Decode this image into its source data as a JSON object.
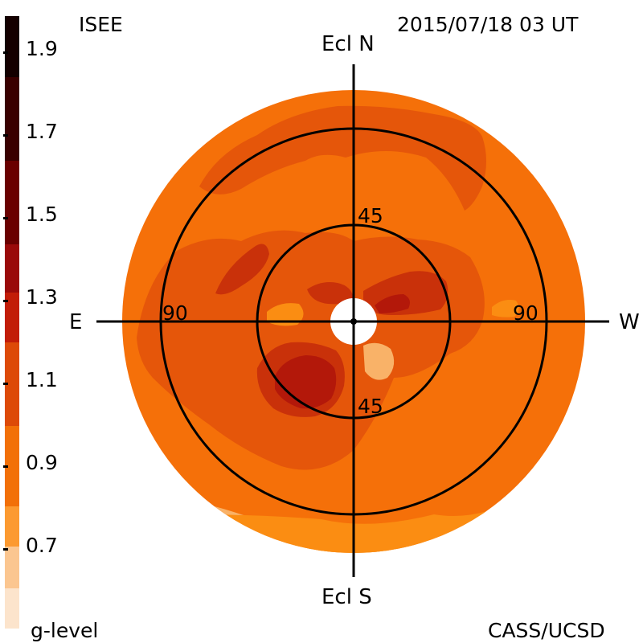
{
  "header": {
    "source_label": "ISEE",
    "timestamp": "2015/07/18 03 UT"
  },
  "footer": {
    "credit": "CASS/UCSD"
  },
  "colorbar": {
    "label": "g-level",
    "ticks": [
      "1.9",
      "1.7",
      "1.5",
      "1.3",
      "1.1",
      "0.9",
      "0.7"
    ],
    "bands": [
      "#140000",
      "#3a0000",
      "#6a0000",
      "#9a0a0a",
      "#c21d08",
      "#dd4a08",
      "#f27008",
      "#fc9a30",
      "#fbc690",
      "#fce4cc"
    ]
  },
  "map": {
    "directions": {
      "north": "Ecl N",
      "south": "Ecl S",
      "east": "E",
      "west": "W"
    },
    "ring_labels": {
      "inner_north": "45",
      "inner_south": "45",
      "outer_east": "90",
      "outer_west": "90"
    },
    "colors": {
      "base": "#f57009",
      "medium": "#e5560a",
      "dark": "#c9310a",
      "darker": "#b3180a",
      "light": "#fb8d12",
      "pale": "#f9b268"
    }
  }
}
